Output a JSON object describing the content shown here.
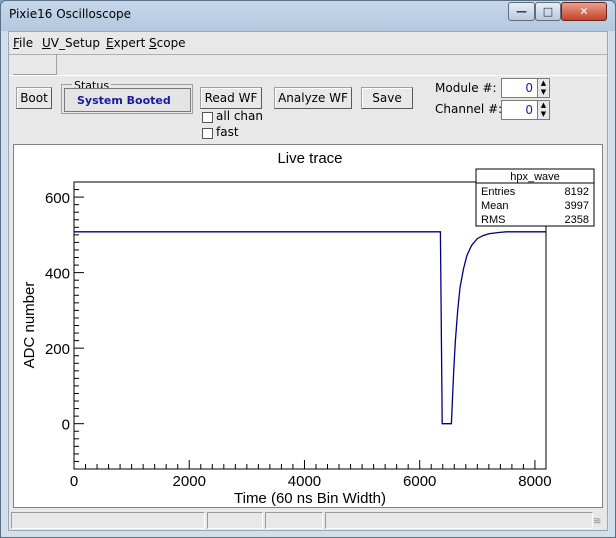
{
  "window": {
    "title": "Pixie16 Oscilloscope",
    "minimize_glyph": "—",
    "maximize_glyph": "□",
    "close_glyph": "✕"
  },
  "menu": {
    "file": {
      "key": "F",
      "rest": "ile"
    },
    "uv_setup": {
      "key": "U",
      "rest": "V_Setup"
    },
    "expert": {
      "key": "E",
      "rest": "xpert"
    },
    "scope": {
      "key": "S",
      "rest": "cope"
    }
  },
  "controls": {
    "boot_label": "Boot",
    "status_legend": "Status",
    "status_value": "System Booted",
    "read_wf_label": "Read WF",
    "analyze_wf_label": "Analyze WF",
    "save_label": "Save",
    "all_chan_label": "all chan",
    "all_chan_checked": false,
    "fast_label": "fast",
    "fast_checked": false,
    "module_label": "Module #:",
    "module_value": "0",
    "channel_label": "Channel #:",
    "channel_value": "0"
  },
  "chart_data": {
    "type": "line",
    "title": "Live trace",
    "xlabel": "Time (60 ns Bin Width)",
    "ylabel": "ADC number",
    "xlim": [
      0,
      8192
    ],
    "ylim": [
      -120,
      640
    ],
    "x_ticks": [
      0,
      2000,
      4000,
      6000,
      8000
    ],
    "y_ticks": [
      0,
      200,
      400,
      600
    ],
    "color": "#000080",
    "series": [
      {
        "x": [
          0,
          6360,
          6390,
          6550,
          6590,
          6620,
          6660,
          6700,
          6760,
          6820,
          6900,
          7000,
          7100,
          7200,
          7350,
          7500,
          7700,
          8192
        ],
        "values": [
          508,
          508,
          0,
          0,
          140,
          220,
          300,
          360,
          410,
          445,
          472,
          490,
          498,
          503,
          506,
          508,
          508,
          508
        ]
      }
    ],
    "stats_box": {
      "title": "hpx_wave",
      "rows": [
        {
          "label": "Entries",
          "value": "8192"
        },
        {
          "label": "Mean",
          "value": "3997"
        },
        {
          "label": "RMS",
          "value": "2358"
        }
      ]
    }
  }
}
